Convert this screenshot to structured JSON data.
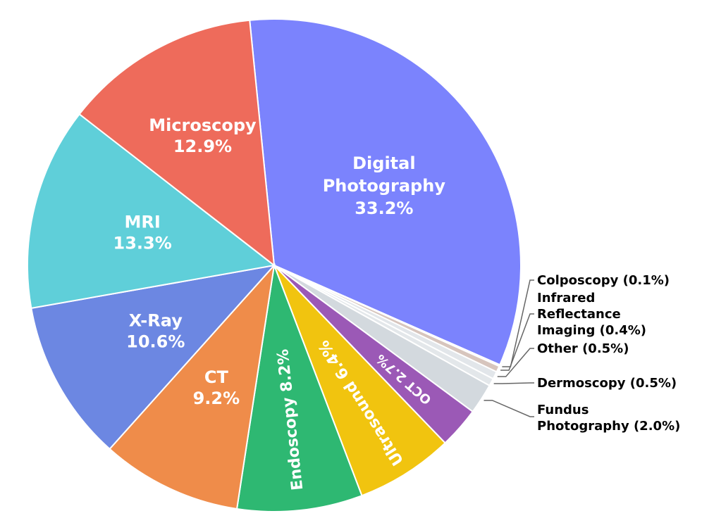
{
  "chart_data": {
    "type": "pie",
    "title": "",
    "slices": [
      {
        "key": "digital",
        "lines": [
          "Digital",
          "Photography",
          "33.2%"
        ],
        "value": 33.2,
        "color": "#7b83fd",
        "placement": "inside"
      },
      {
        "key": "colposcopy",
        "lines": [
          "Colposcopy (0.1%)"
        ],
        "value": 0.1,
        "color": "#ffffff",
        "placement": "outside"
      },
      {
        "key": "infrared",
        "lines": [
          "Infrared",
          "Reflectance",
          "Imaging (0.4%)"
        ],
        "value": 0.4,
        "color": "#d7c5bd",
        "placement": "outside"
      },
      {
        "key": "other",
        "lines": [
          "Other (0.5%)"
        ],
        "value": 0.5,
        "color": "#e2e6ea",
        "placement": "outside"
      },
      {
        "key": "dermoscopy",
        "lines": [
          "Dermoscopy (0.5%)"
        ],
        "value": 0.5,
        "color": "#e3e7ea",
        "placement": "outside"
      },
      {
        "key": "fundus",
        "lines": [
          "Fundus",
          "Photography (2.0%)"
        ],
        "value": 2.0,
        "color": "#d3d9de",
        "placement": "outside"
      },
      {
        "key": "oct",
        "lines": [
          "OCT 2.7%"
        ],
        "value": 2.7,
        "color": "#9b59b6",
        "placement": "inside"
      },
      {
        "key": "ultrasound",
        "lines": [
          "Ultrasound 6.4%"
        ],
        "value": 6.4,
        "color": "#f1c40f",
        "placement": "inside"
      },
      {
        "key": "endoscopy",
        "lines": [
          "Endoscopy 8.2%"
        ],
        "value": 8.2,
        "color": "#2eb872",
        "placement": "inside"
      },
      {
        "key": "ct",
        "lines": [
          "CT",
          "9.2%"
        ],
        "value": 9.2,
        "color": "#ef8c4a",
        "placement": "inside"
      },
      {
        "key": "xray",
        "lines": [
          "X-Ray",
          "10.6%"
        ],
        "value": 10.6,
        "color": "#6c87e2",
        "placement": "inside"
      },
      {
        "key": "mri",
        "lines": [
          "MRI",
          "13.3%"
        ],
        "value": 13.3,
        "color": "#5fcfd9",
        "placement": "inside"
      },
      {
        "key": "microscopy",
        "lines": [
          "Microscopy",
          "12.9%"
        ],
        "value": 12.9,
        "color": "#ee6b5b",
        "placement": "inside"
      }
    ]
  }
}
